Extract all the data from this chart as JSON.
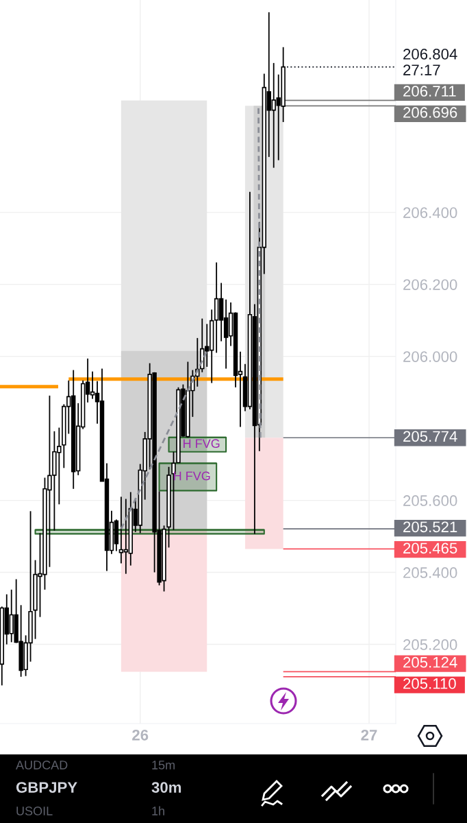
{
  "chart_data": {
    "type": "candlestick",
    "title": "GBPJPY",
    "subtitle": "30m",
    "x": [
      25.3958,
      25.4167,
      25.4375,
      25.4583,
      25.4792,
      25.5,
      25.5208,
      25.5417,
      25.5625,
      25.5833,
      25.6042,
      25.625,
      25.6458,
      25.6667,
      25.6875,
      25.7083,
      25.7292,
      25.75,
      25.7708,
      25.7917,
      25.8125,
      25.8333,
      25.8542,
      25.875,
      25.8958,
      25.9167,
      25.9375,
      25.9583,
      25.9792,
      26,
      26.0208,
      26.0417,
      26.0625,
      26.0833,
      26.1042,
      26.125,
      26.1458,
      26.1667,
      26.1875,
      26.2083,
      26.2292,
      26.25,
      26.2708,
      26.2917,
      26.3125,
      26.3333,
      26.3542,
      26.375,
      26.3958,
      26.4167,
      26.4375,
      26.4583,
      26.4792,
      26.5,
      26.5208,
      26.5417,
      26.5625,
      26.5833,
      26.6042,
      26.625
    ],
    "ohlc": [
      [
        205.145,
        205.305,
        205.086,
        205.301
      ],
      [
        205.301,
        205.339,
        205.2,
        205.229
      ],
      [
        205.23,
        205.352,
        205.206,
        205.282
      ],
      [
        205.282,
        205.381,
        205.204,
        205.206
      ],
      [
        205.208,
        205.309,
        205.11,
        205.128
      ],
      [
        205.13,
        205.225,
        205.112,
        205.204
      ],
      [
        205.204,
        205.57,
        205.152,
        205.291
      ],
      [
        205.295,
        205.434,
        205.215,
        205.394
      ],
      [
        205.389,
        205.509,
        205.276,
        205.396
      ],
      [
        205.394,
        205.663,
        205.352,
        205.632
      ],
      [
        205.629,
        205.891,
        205.415,
        205.669
      ],
      [
        205.67,
        205.792,
        205.516,
        205.735
      ],
      [
        205.733,
        205.802,
        205.589,
        205.75
      ],
      [
        205.754,
        205.867,
        205.69,
        205.861
      ],
      [
        205.861,
        205.933,
        205.785,
        205.888
      ],
      [
        205.89,
        205.962,
        205.632,
        205.68
      ],
      [
        205.682,
        205.87,
        205.67,
        205.806
      ],
      [
        205.804,
        205.933,
        205.798,
        205.924
      ],
      [
        205.928,
        205.994,
        205.872,
        205.895
      ],
      [
        205.893,
        205.958,
        205.882,
        205.901
      ],
      [
        205.897,
        205.931,
        205.813,
        205.874
      ],
      [
        205.876,
        205.966,
        205.653,
        205.653
      ],
      [
        205.659,
        205.703,
        205.404,
        205.461
      ],
      [
        205.461,
        205.571,
        205.451,
        205.539
      ],
      [
        205.543,
        205.547,
        205.459,
        205.48
      ],
      [
        205.455,
        205.61,
        205.425,
        205.463
      ],
      [
        205.457,
        205.604,
        205.396,
        205.463
      ],
      [
        205.453,
        205.623,
        205.419,
        205.577
      ],
      [
        205.575,
        205.606,
        205.512,
        205.531
      ],
      [
        205.531,
        205.701,
        205.509,
        205.684
      ],
      [
        205.682,
        205.79,
        205.602,
        205.771
      ],
      [
        205.771,
        205.981,
        205.686,
        205.95
      ],
      [
        205.954,
        205.956,
        205.4,
        205.512
      ],
      [
        205.516,
        205.625,
        205.364,
        205.373
      ],
      [
        205.377,
        205.53,
        205.347,
        205.52
      ],
      [
        205.526,
        205.693,
        205.469,
        205.67
      ],
      [
        205.674,
        205.735,
        205.518,
        205.703
      ],
      [
        205.705,
        205.914,
        205.705,
        205.907
      ],
      [
        205.909,
        205.922,
        205.777,
        205.779
      ],
      [
        205.777,
        205.985,
        205.775,
        205.905
      ],
      [
        205.905,
        205.962,
        205.832,
        205.945
      ],
      [
        205.945,
        206.051,
        205.916,
        205.964
      ],
      [
        205.966,
        206.105,
        205.956,
        206.021
      ],
      [
        206.027,
        206.09,
        205.971,
        206.015
      ],
      [
        206.017,
        206.13,
        205.926,
        206.099
      ],
      [
        206.101,
        206.261,
        206.01,
        206.16
      ],
      [
        206.16,
        206.204,
        206.042,
        206.101
      ],
      [
        206.107,
        206.158,
        205.966,
        206.053
      ],
      [
        206.057,
        206.15,
        206.029,
        206.12
      ],
      [
        206.12,
        206.122,
        205.914,
        205.947
      ],
      [
        205.95,
        206.013,
        205.804,
        205.958
      ],
      [
        205.943,
        205.979,
        205.848,
        205.861
      ],
      [
        205.861,
        206.457,
        205.853,
        206.116
      ],
      [
        206.11,
        206.145,
        205.507,
        205.808
      ],
      [
        205.81,
        206.373,
        205.737,
        206.303
      ],
      [
        206.303,
        206.785,
        206.229,
        206.747
      ],
      [
        206.735,
        206.956,
        206.554,
        206.684
      ],
      [
        206.684,
        206.815,
        206.524,
        206.712
      ],
      [
        206.718,
        206.783,
        206.545,
        206.697
      ],
      [
        206.695,
        206.859,
        206.651,
        206.804
      ]
    ],
    "series": [
      {
        "type": "line",
        "x": [
          25.9167,
          26.2917
        ],
        "values": [
          null,
          null
        ],
        "lower": [
          205.521,
          205.521
        ],
        "upper": [
          206.711,
          206.711
        ],
        "color": "#e6e6e6"
      },
      {
        "type": "line",
        "x": [
          25.9167,
          26.2917
        ],
        "values": [
          null,
          null
        ],
        "lower": [
          205.521,
          205.521
        ],
        "upper": [
          206.015,
          206.015
        ],
        "color": "#d0d0d0"
      },
      {
        "type": "line",
        "x": [
          25.9167,
          26.2917
        ],
        "values": [
          null,
          null
        ],
        "lower": [
          205.124,
          205.124
        ],
        "upper": [
          205.521,
          205.521
        ],
        "color": "#fbdde0"
      },
      {
        "type": "line",
        "x": [
          26.4583,
          26.625
        ],
        "values": [
          null,
          null
        ],
        "lower": [
          205.774,
          205.774
        ],
        "upper": [
          206.696,
          206.696
        ],
        "color": "#e6e6e6"
      },
      {
        "type": "line",
        "x": [
          26.4958,
          26.5458
        ],
        "values": [
          null,
          null
        ],
        "lower": [
          205.774,
          205.774
        ],
        "upper": [
          206.696,
          206.696
        ],
        "color": "#d0d0d0"
      },
      {
        "type": "line",
        "x": [
          26.4583,
          26.625
        ],
        "values": [
          null,
          null
        ],
        "lower": [
          205.465,
          205.465
        ],
        "upper": [
          205.774,
          205.774
        ],
        "color": "#fbdde0"
      },
      {
        "type": "line",
        "name": "H FVG",
        "x": [
          26.125,
          26.375
        ],
        "values": [
          205.775,
          205.775
        ],
        "lower": [
          205.735,
          205.735
        ],
        "upper": [
          205.775,
          205.775
        ],
        "color": "#2e6b30",
        "line_style": "solid"
      },
      {
        "type": "line",
        "name": "H FVG",
        "x": [
          26.0833,
          26.3333
        ],
        "values": [
          205.703,
          205.703
        ],
        "lower": [
          205.627,
          205.627
        ],
        "upper": [
          205.703,
          205.703
        ],
        "color": "#2e6b30",
        "line_style": "solid"
      },
      {
        "type": "line",
        "x": [
          25.5417,
          26.5417
        ],
        "values": [
          205.518,
          205.518
        ],
        "lower": [
          205.507,
          205.507
        ],
        "upper": [
          205.518,
          205.518
        ],
        "color": "#2e6b30",
        "line_style": "solid"
      },
      {
        "type": "line",
        "x": [
          25.3875,
          25.6417
        ],
        "values": [
          205.916,
          205.916
        ],
        "color": "#ff9800",
        "line_style": "solid"
      },
      {
        "type": "line",
        "x": [
          25.6875,
          26.625
        ],
        "values": [
          205.937,
          205.937
        ],
        "color": "#ff9800",
        "line_style": "solid"
      },
      {
        "type": "line",
        "x": [
          25.9167,
          26.2917
        ],
        "values": [
          205.521,
          206.015
        ],
        "color": "#8a8d96",
        "line_style": "dashed"
      },
      {
        "type": "line",
        "x": [
          26.525,
          26.5167
        ],
        "values": [
          205.774,
          206.696
        ],
        "color": "#8a8d96",
        "line_style": "dashed"
      }
    ],
    "xlim": [
      25.3875,
      27.1167
    ],
    "ylim": [
      204.98,
      206.99
    ],
    "xticks": [
      26,
      27
    ],
    "yticks": [
      {
        "value": 205.2,
        "label": "205.200"
      },
      {
        "value": 205.4,
        "label": "205.400"
      },
      {
        "value": 205.6,
        "label": "205.600"
      },
      {
        "value": 206.0,
        "label": "206.000"
      },
      {
        "value": 206.2,
        "label": "206.200"
      },
      {
        "value": 206.4,
        "label": "206.400"
      }
    ],
    "grid": true,
    "ref_lines": [
      {
        "axis": "y",
        "value": 206.804,
        "label": "206.804\n27:17",
        "line_style": "dotted"
      },
      {
        "axis": "y",
        "value": 206.711,
        "label": "206.711",
        "color": "#787878"
      },
      {
        "axis": "y",
        "value": 206.696,
        "label": "206.696",
        "color": "#787878"
      },
      {
        "axis": "y",
        "value": 205.774,
        "label": "205.774",
        "color": "#6f727c"
      },
      {
        "axis": "y",
        "value": 205.521,
        "label": "205.521",
        "color": "#6f727c"
      },
      {
        "axis": "y",
        "value": 205.465,
        "label": "205.465",
        "color": "#f7525f"
      },
      {
        "axis": "y",
        "value": 205.124,
        "label": "205.124",
        "color": "#f7525f"
      },
      {
        "axis": "y",
        "value": 205.11,
        "label": "205.110",
        "color": "#f23645"
      }
    ],
    "annotations": [
      "AUDCAD",
      "15m",
      "USOIL",
      "1h"
    ]
  }
}
